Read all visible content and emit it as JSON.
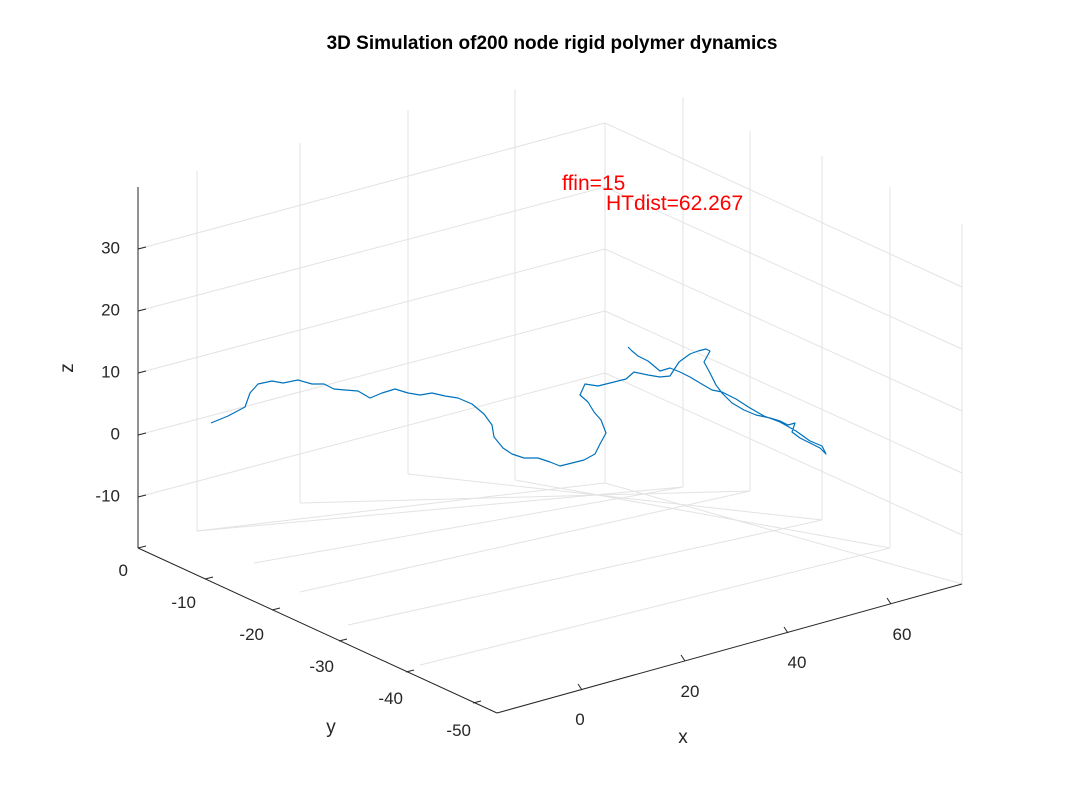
{
  "chart_data": {
    "type": "line3d",
    "title": "3D Simulation of200 node rigid polymer dynamics",
    "xlabel": "x",
    "ylabel": "y",
    "zlabel": "z",
    "xticks": [
      0,
      20,
      40,
      60
    ],
    "yticks": [
      0,
      -10,
      -20,
      -30,
      -40,
      -50
    ],
    "zticks": [
      -10,
      0,
      10,
      20,
      30
    ],
    "xlim": [
      -10,
      75
    ],
    "ylim": [
      -52,
      2
    ],
    "zlim": [
      -20,
      40
    ],
    "grid": true,
    "line_color": "#0072bd",
    "annotation_color": "#ff0000",
    "annotations": [
      {
        "text": "ffin=15"
      },
      {
        "text": "HTdist=62.267"
      }
    ],
    "series": [
      {
        "name": "",
        "screen_anchors": [
          [
            211,
            423
          ],
          [
            228,
            416
          ],
          [
            245,
            407
          ],
          [
            250,
            393
          ],
          [
            258,
            384
          ],
          [
            272,
            381
          ],
          [
            283,
            383
          ],
          [
            298,
            380
          ],
          [
            312,
            384
          ],
          [
            324,
            384
          ],
          [
            334,
            389
          ],
          [
            345,
            390
          ],
          [
            358,
            391
          ],
          [
            370,
            398
          ],
          [
            382,
            393
          ],
          [
            395,
            389
          ],
          [
            408,
            393
          ],
          [
            420,
            395
          ],
          [
            432,
            393
          ],
          [
            445,
            396
          ],
          [
            458,
            398
          ],
          [
            472,
            404
          ],
          [
            484,
            414
          ],
          [
            492,
            425
          ],
          [
            494,
            437
          ],
          [
            503,
            448
          ],
          [
            512,
            454
          ],
          [
            524,
            458
          ],
          [
            538,
            458
          ],
          [
            550,
            462
          ],
          [
            560,
            466
          ],
          [
            572,
            463
          ],
          [
            584,
            460
          ],
          [
            595,
            454
          ],
          [
            600,
            444
          ],
          [
            606,
            433
          ],
          [
            601,
            420
          ],
          [
            594,
            412
          ],
          [
            588,
            402
          ],
          [
            580,
            395
          ],
          [
            585,
            384
          ],
          [
            598,
            386
          ],
          [
            614,
            382
          ],
          [
            626,
            379
          ],
          [
            634,
            372
          ],
          [
            648,
            375
          ],
          [
            660,
            377
          ],
          [
            670,
            376
          ],
          [
            679,
            362
          ],
          [
            690,
            354
          ],
          [
            698,
            351
          ],
          [
            706,
            349
          ],
          [
            710,
            351
          ],
          [
            704,
            362
          ],
          [
            710,
            373
          ],
          [
            716,
            385
          ],
          [
            722,
            393
          ],
          [
            732,
            403
          ],
          [
            744,
            410
          ],
          [
            756,
            415
          ],
          [
            770,
            418
          ],
          [
            780,
            421
          ],
          [
            788,
            425
          ],
          [
            795,
            423
          ],
          [
            792,
            432
          ],
          [
            800,
            438
          ],
          [
            810,
            443
          ],
          [
            820,
            448
          ],
          [
            826,
            454
          ],
          [
            822,
            446
          ],
          [
            810,
            441
          ],
          [
            796,
            431
          ],
          [
            780,
            422
          ],
          [
            764,
            416
          ],
          [
            750,
            408
          ],
          [
            736,
            399
          ],
          [
            722,
            392
          ],
          [
            712,
            390
          ],
          [
            700,
            383
          ],
          [
            690,
            377
          ],
          [
            680,
            372
          ],
          [
            670,
            368
          ],
          [
            660,
            371
          ],
          [
            648,
            361
          ],
          [
            638,
            356
          ],
          [
            632,
            351
          ],
          [
            628,
            347
          ]
        ]
      }
    ]
  }
}
